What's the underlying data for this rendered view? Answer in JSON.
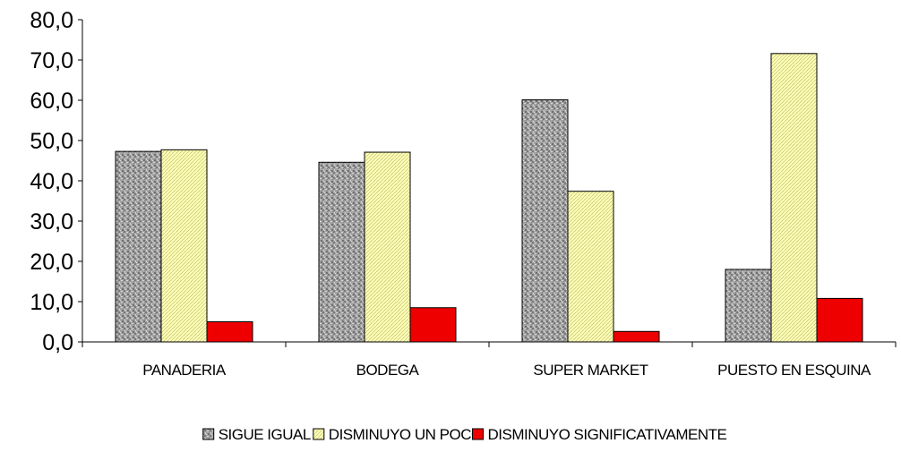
{
  "chart_data": {
    "type": "bar",
    "categories": [
      "PANADERIA",
      "BODEGA",
      "SUPER MARKET",
      "PUESTO EN ESQUINA"
    ],
    "series": [
      {
        "name": "SIGUE IGUAL",
        "values": [
          47.3,
          44.6,
          60.1,
          18.0
        ],
        "color": "#a9a9a9"
      },
      {
        "name": "DISMINUYO UN POCO",
        "values": [
          47.7,
          47.1,
          37.4,
          71.6
        ],
        "color": "#ffffb0"
      },
      {
        "name": "DISMINUYO SIGNIFICATIVAMENTE",
        "values": [
          5.0,
          8.5,
          2.6,
          10.8
        ],
        "color": "#ee0000"
      }
    ],
    "ylim": [
      0,
      80
    ],
    "yticks": [
      "0,0",
      "10,0",
      "20,0",
      "30,0",
      "40,0",
      "50,0",
      "60,0",
      "70,0",
      "80,0"
    ],
    "legend": "bottom",
    "grid": false
  }
}
